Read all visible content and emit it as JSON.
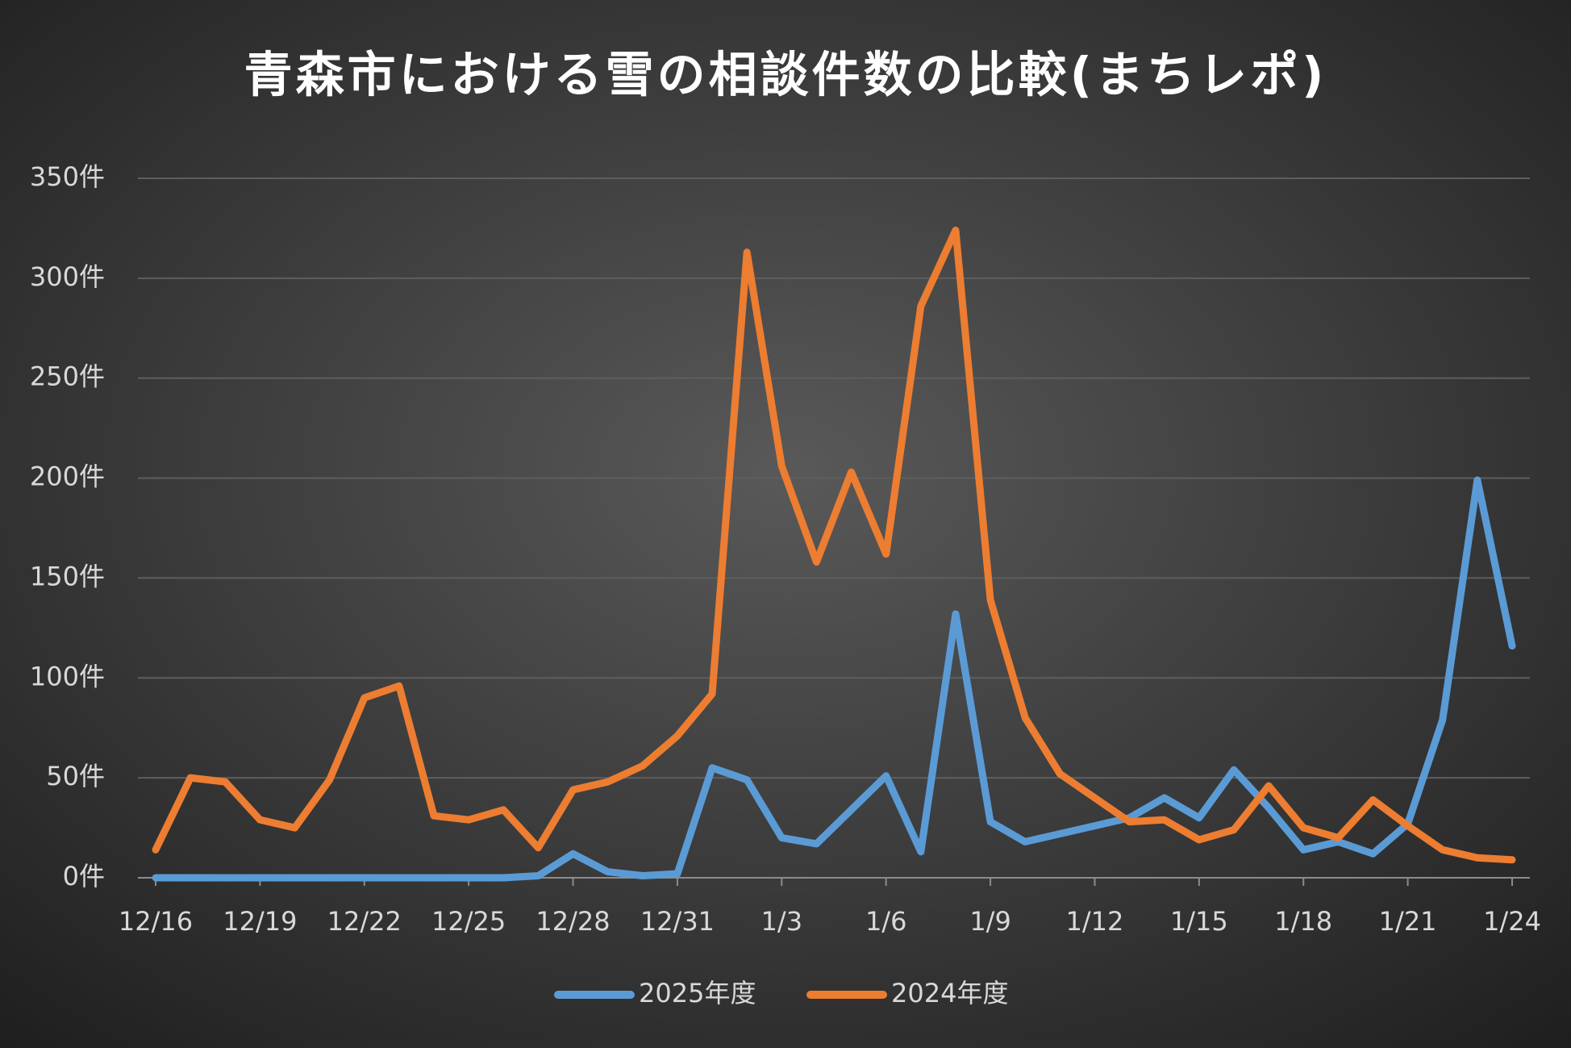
{
  "chart_data": {
    "type": "line",
    "title": "青森市における雪の相談件数の比較(まちレポ)",
    "categories": [
      "12/16",
      null,
      null,
      "12/19",
      null,
      null,
      "12/22",
      null,
      null,
      "12/25",
      null,
      null,
      "12/28",
      null,
      null,
      "12/31",
      null,
      null,
      "1/3",
      null,
      null,
      "1/6",
      null,
      null,
      "1/9",
      null,
      null,
      "1/12",
      null,
      null,
      "1/15",
      null,
      null,
      "1/18",
      null,
      null,
      "1/21",
      null,
      null,
      "1/24"
    ],
    "series": [
      {
        "name": "2025年度",
        "color": "#5b9bd5",
        "values": [
          0,
          0,
          0,
          0,
          0,
          0,
          0,
          0,
          0,
          0,
          0,
          1,
          12,
          3,
          1,
          2,
          55,
          49,
          20,
          17,
          34,
          51,
          13,
          132,
          28,
          18,
          22,
          26,
          30,
          40,
          30,
          54,
          35,
          14,
          18,
          12,
          27,
          79,
          199,
          116
        ]
      },
      {
        "name": "2024年度",
        "color": "#ed7d31",
        "values": [
          14,
          50,
          48,
          29,
          25,
          49,
          90,
          96,
          31,
          29,
          34,
          15,
          44,
          48,
          56,
          71,
          92,
          313,
          206,
          158,
          203,
          162,
          286,
          324,
          139,
          80,
          52,
          40,
          28,
          29,
          19,
          24,
          46,
          25,
          20,
          39,
          26,
          14,
          10,
          9
        ]
      }
    ],
    "ylim": [
      0,
      350
    ],
    "yticks": [
      {
        "value": 0,
        "label": "0件"
      },
      {
        "value": 50,
        "label": "50件"
      },
      {
        "value": 100,
        "label": "100件"
      },
      {
        "value": 150,
        "label": "150件"
      },
      {
        "value": 200,
        "label": "200件"
      },
      {
        "value": 250,
        "label": "250件"
      },
      {
        "value": 300,
        "label": "300件"
      },
      {
        "value": 350,
        "label": "350件"
      }
    ],
    "grid": true,
    "legend": "bottom"
  }
}
